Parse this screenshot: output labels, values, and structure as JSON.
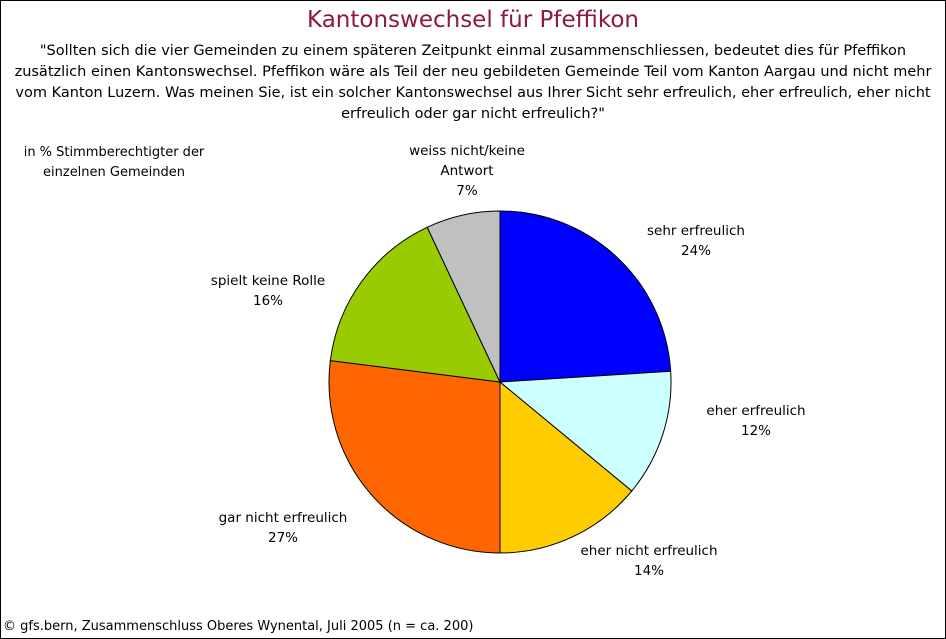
{
  "chart_data": {
    "type": "pie",
    "title": "Kantonswechsel für Pfeffikon",
    "subtitle": "\"Sollten sich die vier Gemeinden zu einem späteren Zeitpunkt einmal zusammenschliessen, bedeutet dies für Pfeffikon zusätzlich einen Kantonswechsel. Pfeffikon wäre als Teil der neu gebildeten Gemeinde Teil vom Kanton Aargau und nicht mehr vom Kanton Luzern. Was meinen Sie, ist ein solcher Kantonswechsel aus Ihrer Sicht sehr erfreulich, eher erfreulich, eher nicht erfreulich oder gar nicht erfreulich?\"",
    "note": "in % Stimmberechtigter der einzelnen Gemeinden",
    "footer": "© gfs.bern, Zusammenschluss Oberes Wynental, Juli 2005 (n = ca. 200)",
    "categories": [
      "sehr erfreulich",
      "eher erfreulich",
      "eher nicht erfreulich",
      "gar nicht erfreulich",
      "spielt keine Rolle",
      "weiss nicht/keine Antwort"
    ],
    "values": [
      24,
      12,
      14,
      27,
      16,
      7
    ],
    "value_labels": [
      "24%",
      "12%",
      "14%",
      "27%",
      "16%",
      "7%"
    ],
    "colors": [
      "#0000ff",
      "#ccffff",
      "#ffcc00",
      "#ff6600",
      "#99cc00",
      "#c0c0c0"
    ]
  }
}
